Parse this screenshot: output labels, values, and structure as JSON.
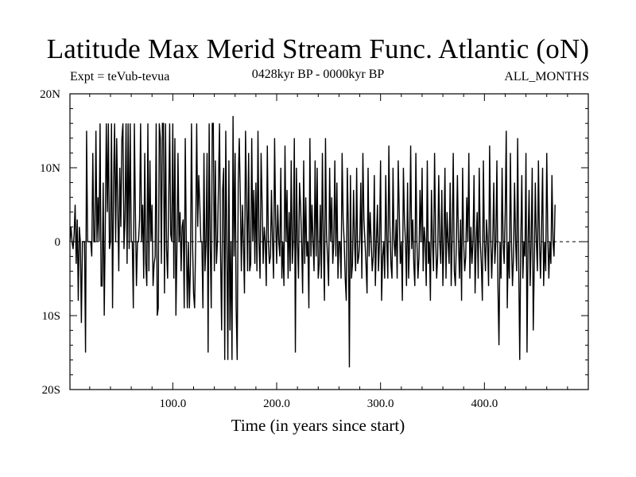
{
  "header": {
    "title": "Latitude Max Merid Stream Func. Atlantic (oN)",
    "expt": "Expt = teVub-tevua",
    "period": "0428kyr BP - 0000kyr BP",
    "months": "ALL_MONTHS"
  },
  "chart_data": {
    "type": "line",
    "title": "Latitude Max Merid Stream Func. Atlantic (oN)",
    "xlabel": "Time (in years since start)",
    "ylabel": "",
    "xlim": [
      1,
      500
    ],
    "ylim": [
      -20,
      20
    ],
    "x_ticks": [
      100,
      200,
      300,
      400
    ],
    "x_tick_labels": [
      "100.0",
      "200.0",
      "300.0",
      "400.0"
    ],
    "y_ticks": [
      -20,
      -10,
      0,
      10,
      20
    ],
    "y_tick_labels": [
      "20S",
      "10S",
      "0",
      "10N",
      "20N"
    ],
    "zero_line": "dashed",
    "grid": false,
    "series": [
      {
        "x_start": 1,
        "x_step": 1,
        "values": [
          0,
          2,
          0,
          -1,
          1,
          5,
          -3,
          3,
          -8,
          2,
          0,
          -11,
          0,
          0,
          0,
          -15,
          15,
          0,
          0,
          0,
          0,
          -2,
          12,
          0,
          0,
          15,
          0,
          6,
          0,
          16,
          -6,
          -6,
          8,
          -10,
          2,
          16,
          4,
          16,
          -1,
          0,
          16,
          -9,
          8,
          16,
          0,
          14,
          5,
          -4,
          10,
          2,
          14,
          16,
          -1,
          3,
          16,
          -3,
          16,
          -1,
          16,
          0,
          0,
          -9,
          16,
          4,
          -6,
          0,
          0,
          3,
          16,
          0,
          5,
          -5,
          12,
          -3,
          -6,
          16,
          -4,
          11,
          0,
          5,
          -6,
          -3,
          -2,
          16,
          -10,
          -9,
          16,
          14,
          -3,
          16,
          16,
          -7,
          16,
          -1,
          -5,
          5,
          16,
          1,
          0,
          16,
          -5,
          14,
          -10,
          -1,
          12,
          0,
          4,
          -4,
          2,
          3,
          -9,
          14,
          0,
          -9,
          0,
          -9,
          -3,
          16,
          0,
          -7,
          -9,
          0,
          16,
          2,
          9,
          5,
          0,
          0,
          -9,
          12,
          -4,
          0,
          12,
          -15,
          16,
          0,
          -9,
          16,
          16,
          -4,
          11,
          -3,
          0,
          8,
          16,
          -2,
          -12,
          7,
          10,
          -16,
          15,
          0,
          -16,
          11,
          -12,
          0,
          -16,
          17,
          -2,
          12,
          -9,
          -16,
          8,
          14,
          6,
          -4,
          5,
          0,
          -7,
          15,
          6,
          -4,
          12,
          -4,
          -3,
          14,
          0,
          7,
          -3,
          8,
          -4,
          15,
          0,
          -5,
          12,
          5,
          -3,
          2,
          0,
          -6,
          13,
          0,
          -3,
          -2,
          7,
          0,
          -5,
          14,
          3,
          -3,
          5,
          0,
          -2,
          10,
          -5,
          0,
          -6,
          13,
          0,
          7,
          -5,
          4,
          -4,
          11,
          -3,
          0,
          14,
          -15,
          10,
          0,
          -5,
          8,
          5,
          0,
          -7,
          11,
          -3,
          6,
          -2,
          0,
          -9,
          14,
          -2,
          5,
          0,
          -4,
          11,
          -2,
          10,
          -5,
          -3,
          5,
          -5,
          12,
          0,
          -8,
          14,
          1,
          -2,
          -6,
          10,
          0,
          6,
          -3,
          0,
          11,
          -2,
          8,
          -5,
          0,
          0,
          -5,
          12,
          3,
          0,
          -5,
          -8,
          10,
          2,
          -17,
          9,
          -5,
          -3,
          7,
          0,
          -4,
          10,
          -3,
          -2,
          0,
          8,
          -5,
          12,
          3,
          0,
          -3,
          -7,
          10,
          -2,
          4,
          0,
          -4,
          -2,
          9,
          -6,
          0,
          5,
          -4,
          0,
          11,
          -8,
          -2,
          0,
          -5,
          9,
          0,
          -5,
          13,
          2,
          -3,
          -5,
          10,
          0,
          -2,
          3,
          -5,
          11,
          4,
          -3,
          0,
          -8,
          10,
          3,
          0,
          -6,
          8,
          -5,
          0,
          13,
          -1,
          3,
          -3,
          -6,
          12,
          0,
          -5,
          -2,
          7,
          0,
          10,
          -4,
          2,
          0,
          -6,
          11,
          -3,
          0,
          -8,
          7,
          0,
          -4,
          12,
          1,
          -5,
          -2,
          9,
          0,
          -3,
          7,
          -6,
          0,
          10,
          -5,
          4,
          0,
          -3,
          8,
          -6,
          1,
          12,
          -4,
          -6,
          0,
          9,
          0,
          -5,
          3,
          -8,
          10,
          0,
          -4,
          -2,
          6,
          0,
          12,
          -5,
          2,
          -3,
          0,
          9,
          -7,
          0,
          4,
          -5,
          10,
          0,
          -3,
          -8,
          11,
          0,
          -4,
          3,
          0,
          -6,
          13,
          1,
          -5,
          0,
          8,
          -3,
          0,
          11,
          -6,
          -14,
          0,
          -5,
          10,
          0,
          -3,
          4,
          15,
          -9,
          0,
          -5,
          12,
          0,
          -6,
          -2,
          8,
          0,
          -4,
          14,
          -3,
          -16,
          0,
          9,
          -5,
          0,
          -2,
          12,
          -15,
          0,
          7,
          -6,
          0,
          10,
          -12,
          -3,
          8,
          0,
          -4,
          11,
          0,
          -5,
          2,
          10,
          -6,
          0,
          -4,
          12,
          1,
          -5,
          0,
          -3,
          9,
          0,
          -2,
          5
        ]
      }
    ]
  }
}
